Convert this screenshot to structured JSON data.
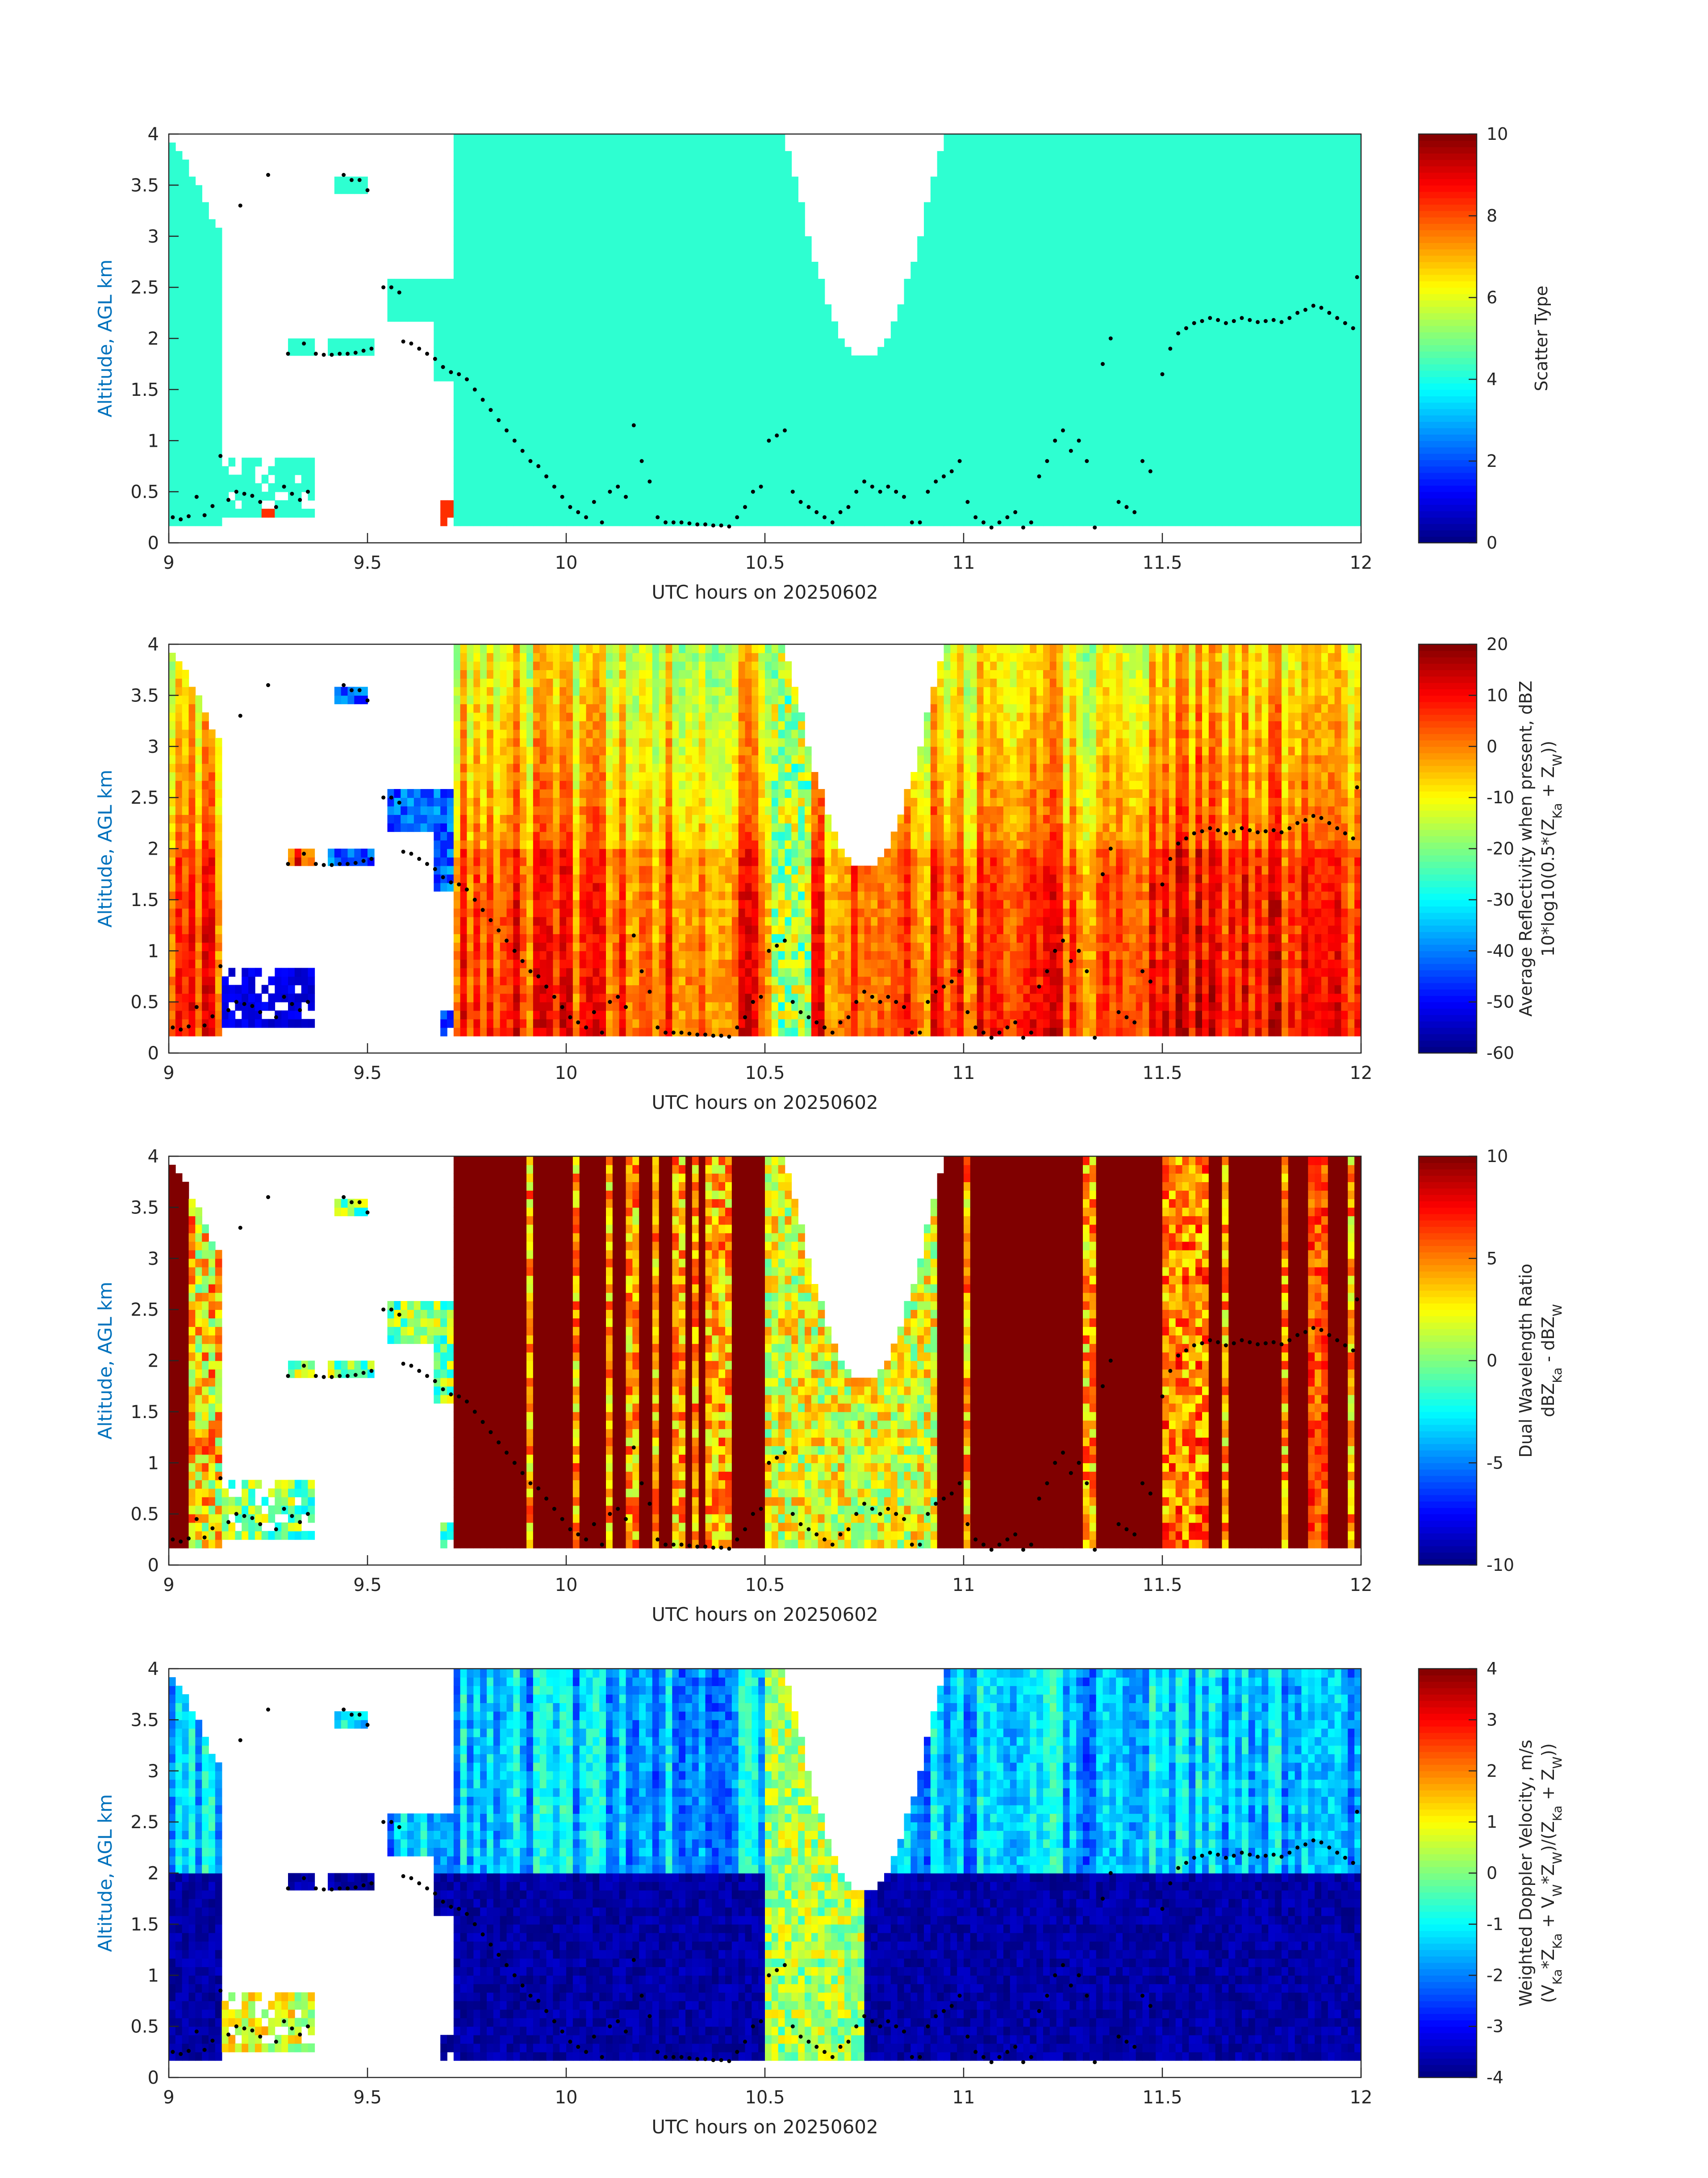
{
  "chart_data": [
    {
      "type": "heatmap",
      "xlabel": "UTC hours on 20250602",
      "ylabel": "Altitude, AGL km",
      "xlim": [
        9,
        12
      ],
      "ylim": [
        0,
        4
      ],
      "xticks": [
        "9",
        "9.5",
        "10",
        "10.5",
        "11",
        "11.5",
        "12"
      ],
      "yticks": [
        "0",
        "0.5",
        "1",
        "1.5",
        "2",
        "2.5",
        "3",
        "3.5",
        "4"
      ],
      "colorbar": {
        "label_lines": [
          "Scatter Type"
        ],
        "range": [
          0,
          10
        ],
        "ticks": [
          "0",
          "2",
          "4",
          "6",
          "8",
          "10"
        ],
        "colormap": "jet"
      },
      "field": "scatter_type"
    },
    {
      "type": "heatmap",
      "xlabel": "UTC hours on 20250602",
      "ylabel": "Altitude, AGL km",
      "xlim": [
        9,
        12
      ],
      "ylim": [
        0,
        4
      ],
      "xticks": [
        "9",
        "9.5",
        "10",
        "10.5",
        "11",
        "11.5",
        "12"
      ],
      "yticks": [
        "0",
        "0.5",
        "1",
        "1.5",
        "2",
        "2.5",
        "3",
        "3.5",
        "4"
      ],
      "colorbar": {
        "label_lines": [
          "Average Reflectivity when present, dBZ",
          "10*log10(0.5*(Z_Ka + Z_W))"
        ],
        "range": [
          -60,
          20
        ],
        "ticks": [
          "-60",
          "-50",
          "-40",
          "-30",
          "-20",
          "-10",
          "0",
          "10",
          "20"
        ],
        "colormap": "jet"
      },
      "field": "reflectivity"
    },
    {
      "type": "heatmap",
      "xlabel": "UTC hours on 20250602",
      "ylabel": "Altitude, AGL km",
      "xlim": [
        9,
        12
      ],
      "ylim": [
        0,
        4
      ],
      "xticks": [
        "9",
        "9.5",
        "10",
        "10.5",
        "11",
        "11.5",
        "12"
      ],
      "yticks": [
        "0",
        "0.5",
        "1",
        "1.5",
        "2",
        "2.5",
        "3",
        "3.5",
        "4"
      ],
      "colorbar": {
        "label_lines": [
          "Dual Wavelength Ratio",
          "dBZ_Ka - dBZ_W"
        ],
        "range": [
          -10,
          10
        ],
        "ticks": [
          "-10",
          "-5",
          "0",
          "5",
          "10"
        ],
        "colormap": "jet"
      },
      "field": "dwr"
    },
    {
      "type": "heatmap",
      "xlabel": "UTC hours on 20250602",
      "ylabel": "Altitude, AGL km",
      "xlim": [
        9,
        12
      ],
      "ylim": [
        0,
        4
      ],
      "xticks": [
        "9",
        "9.5",
        "10",
        "10.5",
        "11",
        "11.5",
        "12"
      ],
      "yticks": [
        "0",
        "0.5",
        "1",
        "1.5",
        "2",
        "2.5",
        "3",
        "3.5",
        "4"
      ],
      "colorbar": {
        "label_lines": [
          "Weighted Doppler Velocity, m/s",
          "(V_Ka*Z_Ka + V_W*Z_W)/(Z_Ka + Z_W))"
        ],
        "range": [
          -4,
          4
        ],
        "ticks": [
          "-4",
          "-3",
          "-2",
          "-1",
          "0",
          "1",
          "2",
          "3",
          "4"
        ],
        "colormap": "jet"
      },
      "field": "doppler"
    }
  ],
  "cloud_base_dots": [
    [
      9.01,
      0.25
    ],
    [
      9.03,
      0.23
    ],
    [
      9.05,
      0.26
    ],
    [
      9.07,
      0.45
    ],
    [
      9.09,
      0.27
    ],
    [
      9.11,
      0.36
    ],
    [
      9.13,
      0.85
    ],
    [
      9.15,
      0.42
    ],
    [
      9.17,
      0.5
    ],
    [
      9.18,
      3.3
    ],
    [
      9.19,
      0.48
    ],
    [
      9.21,
      0.46
    ],
    [
      9.23,
      0.4
    ],
    [
      9.25,
      3.6
    ],
    [
      9.27,
      0.35
    ],
    [
      9.29,
      0.55
    ],
    [
      9.3,
      1.85
    ],
    [
      9.31,
      0.48
    ],
    [
      9.33,
      0.42
    ],
    [
      9.34,
      1.95
    ],
    [
      9.35,
      0.5
    ],
    [
      9.37,
      1.85
    ],
    [
      9.39,
      1.84
    ],
    [
      9.41,
      1.84
    ],
    [
      9.43,
      1.85
    ],
    [
      9.44,
      3.6
    ],
    [
      9.45,
      1.85
    ],
    [
      9.46,
      3.55
    ],
    [
      9.47,
      1.86
    ],
    [
      9.48,
      3.55
    ],
    [
      9.49,
      1.88
    ],
    [
      9.5,
      3.45
    ],
    [
      9.51,
      1.9
    ],
    [
      9.54,
      2.5
    ],
    [
      9.56,
      2.5
    ],
    [
      9.58,
      2.45
    ],
    [
      9.59,
      1.97
    ],
    [
      9.61,
      1.95
    ],
    [
      9.63,
      1.9
    ],
    [
      9.65,
      1.85
    ],
    [
      9.67,
      1.8
    ],
    [
      9.69,
      1.72
    ],
    [
      9.71,
      1.67
    ],
    [
      9.73,
      1.65
    ],
    [
      9.75,
      1.6
    ],
    [
      9.77,
      1.5
    ],
    [
      9.79,
      1.4
    ],
    [
      9.81,
      1.3
    ],
    [
      9.83,
      1.2
    ],
    [
      9.85,
      1.1
    ],
    [
      9.87,
      1.0
    ],
    [
      9.89,
      0.9
    ],
    [
      9.91,
      0.8
    ],
    [
      9.93,
      0.75
    ],
    [
      9.95,
      0.65
    ],
    [
      9.97,
      0.55
    ],
    [
      9.99,
      0.45
    ],
    [
      10.01,
      0.35
    ],
    [
      10.03,
      0.3
    ],
    [
      10.05,
      0.25
    ],
    [
      10.07,
      0.4
    ],
    [
      10.09,
      0.2
    ],
    [
      10.11,
      0.5
    ],
    [
      10.13,
      0.55
    ],
    [
      10.15,
      0.45
    ],
    [
      10.17,
      1.15
    ],
    [
      10.19,
      0.8
    ],
    [
      10.21,
      0.6
    ],
    [
      10.23,
      0.25
    ],
    [
      10.25,
      0.2
    ],
    [
      10.27,
      0.2
    ],
    [
      10.29,
      0.2
    ],
    [
      10.31,
      0.19
    ],
    [
      10.33,
      0.18
    ],
    [
      10.35,
      0.18
    ],
    [
      10.37,
      0.17
    ],
    [
      10.39,
      0.17
    ],
    [
      10.41,
      0.16
    ],
    [
      10.43,
      0.25
    ],
    [
      10.45,
      0.35
    ],
    [
      10.47,
      0.5
    ],
    [
      10.49,
      0.55
    ],
    [
      10.51,
      1.0
    ],
    [
      10.53,
      1.05
    ],
    [
      10.55,
      1.1
    ],
    [
      10.57,
      0.5
    ],
    [
      10.59,
      0.4
    ],
    [
      10.61,
      0.35
    ],
    [
      10.63,
      0.3
    ],
    [
      10.65,
      0.25
    ],
    [
      10.67,
      0.2
    ],
    [
      10.69,
      0.3
    ],
    [
      10.71,
      0.35
    ],
    [
      10.73,
      0.5
    ],
    [
      10.75,
      0.6
    ],
    [
      10.77,
      0.55
    ],
    [
      10.79,
      0.5
    ],
    [
      10.81,
      0.55
    ],
    [
      10.83,
      0.5
    ],
    [
      10.85,
      0.45
    ],
    [
      10.87,
      0.2
    ],
    [
      10.89,
      0.2
    ],
    [
      10.91,
      0.5
    ],
    [
      10.93,
      0.6
    ],
    [
      10.95,
      0.65
    ],
    [
      10.97,
      0.7
    ],
    [
      10.99,
      0.8
    ],
    [
      11.01,
      0.4
    ],
    [
      11.03,
      0.25
    ],
    [
      11.05,
      0.2
    ],
    [
      11.07,
      0.15
    ],
    [
      11.09,
      0.2
    ],
    [
      11.11,
      0.25
    ],
    [
      11.13,
      0.3
    ],
    [
      11.15,
      0.15
    ],
    [
      11.17,
      0.2
    ],
    [
      11.19,
      0.65
    ],
    [
      11.21,
      0.8
    ],
    [
      11.23,
      1.0
    ],
    [
      11.25,
      1.1
    ],
    [
      11.27,
      0.9
    ],
    [
      11.29,
      1.0
    ],
    [
      11.31,
      0.8
    ],
    [
      11.33,
      0.15
    ],
    [
      11.35,
      1.75
    ],
    [
      11.37,
      2.0
    ],
    [
      11.39,
      0.4
    ],
    [
      11.41,
      0.35
    ],
    [
      11.43,
      0.3
    ],
    [
      11.45,
      0.8
    ],
    [
      11.47,
      0.7
    ],
    [
      11.5,
      1.65
    ],
    [
      11.52,
      1.9
    ],
    [
      11.54,
      2.05
    ],
    [
      11.56,
      2.1
    ],
    [
      11.58,
      2.15
    ],
    [
      11.6,
      2.17
    ],
    [
      11.62,
      2.2
    ],
    [
      11.64,
      2.18
    ],
    [
      11.66,
      2.15
    ],
    [
      11.68,
      2.17
    ],
    [
      11.7,
      2.2
    ],
    [
      11.72,
      2.18
    ],
    [
      11.74,
      2.16
    ],
    [
      11.76,
      2.17
    ],
    [
      11.78,
      2.18
    ],
    [
      11.8,
      2.16
    ],
    [
      11.82,
      2.2
    ],
    [
      11.84,
      2.25
    ],
    [
      11.86,
      2.28
    ],
    [
      11.88,
      2.32
    ],
    [
      11.9,
      2.3
    ],
    [
      11.92,
      2.25
    ],
    [
      11.94,
      2.2
    ],
    [
      11.96,
      2.15
    ],
    [
      11.98,
      2.1
    ],
    [
      11.99,
      2.6
    ]
  ]
}
